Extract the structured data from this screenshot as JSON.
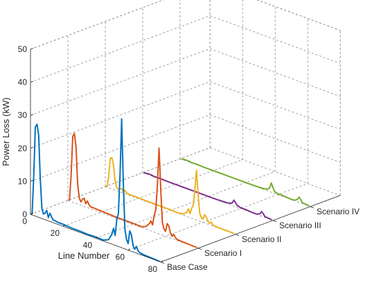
{
  "chart_data": {
    "type": "line",
    "view": "3d-waterfall",
    "title": "",
    "xlabel": "Line Number",
    "ylabel": "",
    "zlabel": "Power Loss (kW)",
    "xlim": [
      0,
      80
    ],
    "zlim": [
      0,
      50
    ],
    "x_ticks": [
      0,
      20,
      40,
      60,
      80
    ],
    "z_ticks": [
      0,
      10,
      20,
      30,
      40,
      50
    ],
    "grid": true,
    "categories": [
      "Base Case",
      "Scenario I",
      "Scenario II",
      "Scenario III",
      "Scenario IV"
    ],
    "series": [
      {
        "name": "Base Case",
        "color": "#0072BD",
        "points": [
          [
            1,
            0.5
          ],
          [
            2,
            12
          ],
          [
            3,
            27
          ],
          [
            4,
            28
          ],
          [
            5,
            25
          ],
          [
            6,
            12
          ],
          [
            7,
            3
          ],
          [
            8,
            1.5
          ],
          [
            9,
            2
          ],
          [
            10,
            3
          ],
          [
            11,
            1
          ],
          [
            12,
            2.5
          ],
          [
            13,
            1.5
          ],
          [
            14,
            0.8
          ],
          [
            15,
            0.8
          ],
          [
            17,
            0.6
          ],
          [
            20,
            0.6
          ],
          [
            25,
            0.4
          ],
          [
            30,
            0.4
          ],
          [
            35,
            0.3
          ],
          [
            40,
            0.4
          ],
          [
            45,
            0.3
          ],
          [
            48,
            1
          ],
          [
            50,
            3
          ],
          [
            51,
            5
          ],
          [
            52,
            3
          ],
          [
            53,
            8
          ],
          [
            54,
            10
          ],
          [
            55,
            22
          ],
          [
            56,
            39
          ],
          [
            57,
            20
          ],
          [
            58,
            6
          ],
          [
            59,
            3
          ],
          [
            60,
            2
          ],
          [
            61,
            6
          ],
          [
            62,
            5
          ],
          [
            63,
            2
          ],
          [
            64,
            1
          ],
          [
            65,
            2
          ],
          [
            66,
            1
          ],
          [
            67,
            0.5
          ],
          [
            70,
            0.3
          ],
          [
            75,
            0.2
          ],
          [
            79,
            0.1
          ]
        ]
      },
      {
        "name": "Scenario I",
        "color": "#D95319",
        "points": [
          [
            1,
            0.3
          ],
          [
            2,
            8
          ],
          [
            3,
            20
          ],
          [
            4,
            21
          ],
          [
            5,
            17
          ],
          [
            6,
            6
          ],
          [
            7,
            2
          ],
          [
            8,
            1
          ],
          [
            9,
            2
          ],
          [
            10,
            2.5
          ],
          [
            11,
            1
          ],
          [
            12,
            2
          ],
          [
            13,
            1
          ],
          [
            14,
            0.6
          ],
          [
            15,
            0.6
          ],
          [
            20,
            0.5
          ],
          [
            25,
            0.4
          ],
          [
            30,
            0.3
          ],
          [
            35,
            0.3
          ],
          [
            40,
            0.3
          ],
          [
            45,
            0.2
          ],
          [
            48,
            0.8
          ],
          [
            50,
            2
          ],
          [
            51,
            3
          ],
          [
            52,
            2
          ],
          [
            53,
            5
          ],
          [
            54,
            7
          ],
          [
            55,
            15
          ],
          [
            56,
            26
          ],
          [
            57,
            14
          ],
          [
            58,
            4
          ],
          [
            59,
            2
          ],
          [
            60,
            1.5
          ],
          [
            61,
            4
          ],
          [
            62,
            3.5
          ],
          [
            63,
            1.5
          ],
          [
            64,
            0.7
          ],
          [
            65,
            1.5
          ],
          [
            66,
            0.7
          ],
          [
            67,
            0.3
          ],
          [
            70,
            0.2
          ],
          [
            75,
            0.1
          ],
          [
            79,
            0.1
          ]
        ]
      },
      {
        "name": "Scenario II",
        "color": "#EDB120",
        "points": [
          [
            1,
            0.2
          ],
          [
            2,
            3
          ],
          [
            3,
            9
          ],
          [
            4,
            9.5
          ],
          [
            5,
            7.5
          ],
          [
            6,
            3
          ],
          [
            7,
            1
          ],
          [
            8,
            0.6
          ],
          [
            9,
            1
          ],
          [
            10,
            1.2
          ],
          [
            11,
            0.5
          ],
          [
            12,
            1
          ],
          [
            13,
            0.5
          ],
          [
            14,
            0.3
          ],
          [
            15,
            0.3
          ],
          [
            20,
            0.3
          ],
          [
            25,
            0.2
          ],
          [
            30,
            0.2
          ],
          [
            35,
            0.2
          ],
          [
            40,
            0.2
          ],
          [
            45,
            0.1
          ],
          [
            48,
            0.4
          ],
          [
            50,
            1.2
          ],
          [
            51,
            2.5
          ],
          [
            52,
            1.2
          ],
          [
            53,
            3
          ],
          [
            54,
            4
          ],
          [
            55,
            9
          ],
          [
            56,
            15
          ],
          [
            57,
            8
          ],
          [
            58,
            2.5
          ],
          [
            59,
            1.2
          ],
          [
            60,
            1
          ],
          [
            61,
            2.5
          ],
          [
            62,
            2
          ],
          [
            63,
            1
          ],
          [
            64,
            0.4
          ],
          [
            65,
            1
          ],
          [
            66,
            0.4
          ],
          [
            67,
            0.2
          ],
          [
            70,
            0.1
          ],
          [
            75,
            0.1
          ],
          [
            79,
            0.1
          ]
        ]
      },
      {
        "name": "Scenario III",
        "color": "#7E2F8E",
        "points": [
          [
            1,
            0.1
          ],
          [
            3,
            0.3
          ],
          [
            5,
            0.3
          ],
          [
            7,
            0.1
          ],
          [
            10,
            0.2
          ],
          [
            15,
            0.1
          ],
          [
            20,
            0.1
          ],
          [
            25,
            0.1
          ],
          [
            30,
            0.1
          ],
          [
            35,
            0.1
          ],
          [
            40,
            0.1
          ],
          [
            45,
            0.1
          ],
          [
            50,
            0.2
          ],
          [
            52,
            0.3
          ],
          [
            54,
            0.5
          ],
          [
            55,
            0.8
          ],
          [
            56,
            1.8
          ],
          [
            57,
            1.2
          ],
          [
            58,
            0.6
          ],
          [
            60,
            0.3
          ],
          [
            62,
            0.3
          ],
          [
            65,
            0.2
          ],
          [
            68,
            0.1
          ],
          [
            70,
            0.1
          ],
          [
            72,
            0.6
          ],
          [
            73,
            1.4
          ],
          [
            74,
            1
          ],
          [
            75,
            0.3
          ],
          [
            79,
            0.1
          ]
        ]
      },
      {
        "name": "Scenario IV",
        "color": "#77AC30",
        "points": [
          [
            1,
            0.1
          ],
          [
            3,
            0.3
          ],
          [
            5,
            0.3
          ],
          [
            7,
            0.1
          ],
          [
            10,
            0.2
          ],
          [
            15,
            0.1
          ],
          [
            20,
            0.1
          ],
          [
            25,
            0.1
          ],
          [
            30,
            0.1
          ],
          [
            35,
            0.1
          ],
          [
            40,
            0.1
          ],
          [
            45,
            0.1
          ],
          [
            50,
            0.2
          ],
          [
            52,
            0.3
          ],
          [
            54,
            0.6
          ],
          [
            55,
            1.2
          ],
          [
            56,
            2.8
          ],
          [
            57,
            1.6
          ],
          [
            58,
            0.6
          ],
          [
            60,
            0.3
          ],
          [
            62,
            0.3
          ],
          [
            65,
            0.2
          ],
          [
            68,
            0.1
          ],
          [
            70,
            0.1
          ],
          [
            72,
            0.7
          ],
          [
            73,
            1.6
          ],
          [
            74,
            1.1
          ],
          [
            75,
            0.3
          ],
          [
            79,
            0.1
          ]
        ]
      }
    ]
  }
}
